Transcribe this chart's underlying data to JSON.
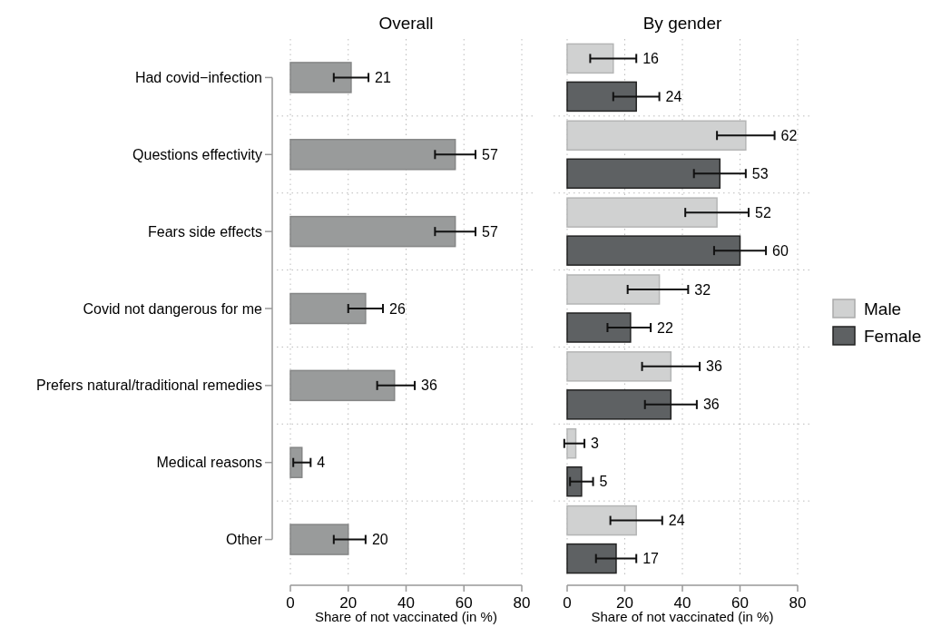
{
  "chart_data": [
    {
      "type": "bar",
      "orientation": "horizontal",
      "title": "Overall",
      "xlabel": "Share of not vaccinated (in %)",
      "categories": [
        "Had covid−infection",
        "Questions effectivity",
        "Fears side effects",
        "Covid not dangerous for me",
        "Prefers natural/traditional remedies",
        "Medical reasons",
        "Other"
      ],
      "values": [
        21,
        57,
        57,
        26,
        36,
        4,
        20
      ],
      "color": "#999b9b",
      "errors": [
        [
          15,
          27
        ],
        [
          50,
          64
        ],
        [
          50,
          64
        ],
        [
          20,
          32
        ],
        [
          30,
          43
        ],
        [
          1,
          7
        ],
        [
          15,
          26
        ]
      ],
      "xlim": [
        0,
        80
      ],
      "xticks": [
        0,
        20,
        40,
        60,
        80
      ],
      "grid": true,
      "data_labels": true
    },
    {
      "type": "bar",
      "orientation": "horizontal",
      "title": "By gender",
      "xlabel": "Share of not vaccinated (in %)",
      "categories": [
        null,
        null,
        null,
        null,
        null,
        null,
        null
      ],
      "series": [
        {
          "name": "Male",
          "color": "#d0d1d1",
          "values": [
            16,
            62,
            52,
            32,
            36,
            3,
            24
          ],
          "errors": [
            [
              8,
              24
            ],
            [
              52,
              72
            ],
            [
              41,
              63
            ],
            [
              21,
              42
            ],
            [
              26,
              46
            ],
            [
              -1,
              6
            ],
            [
              15,
              33
            ]
          ]
        },
        {
          "name": "Female",
          "color": "#5e6163",
          "values": [
            24,
            53,
            60,
            22,
            36,
            5,
            17
          ],
          "errors": [
            [
              16,
              32
            ],
            [
              44,
              62
            ],
            [
              51,
              69
            ],
            [
              14,
              29
            ],
            [
              27,
              45
            ],
            [
              1,
              9
            ],
            [
              10,
              24
            ]
          ]
        }
      ],
      "xlim": [
        0,
        80
      ],
      "xticks": [
        0,
        20,
        40,
        60,
        80
      ],
      "grid": true,
      "data_labels": true,
      "tick_labels": "x",
      "legend": "right"
    }
  ]
}
